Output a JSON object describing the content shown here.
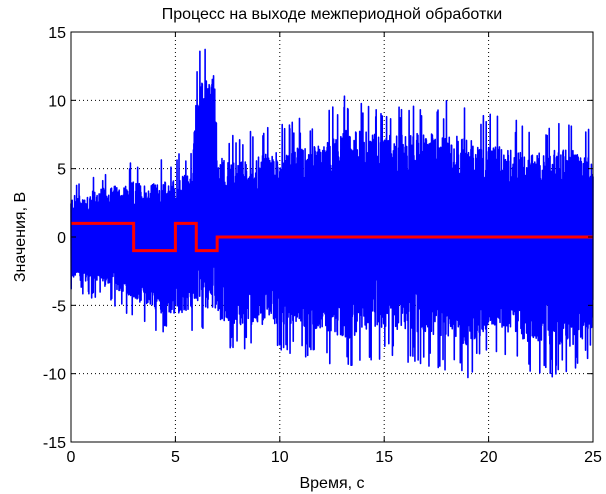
{
  "chart_data": {
    "type": "line",
    "title": "Процесс на выходе межпериодной обработки",
    "xlabel": "Время, с",
    "ylabel": "Значения, В",
    "xlim": [
      0,
      25
    ],
    "ylim": [
      -15,
      15
    ],
    "xticks": [
      0,
      5,
      10,
      15,
      20,
      25
    ],
    "yticks": [
      -15,
      -10,
      -5,
      0,
      5,
      10,
      15
    ],
    "xtick_labels": [
      "0",
      "5",
      "10",
      "15",
      "20",
      "25"
    ],
    "ytick_labels": [
      "-15",
      "-10",
      "-5",
      "0",
      "5",
      "10",
      "15"
    ],
    "grid": true,
    "grid_style": "dotted",
    "series": [
      {
        "color": "#0000ff",
        "kind": "noise-envelope",
        "x": [
          0,
          1,
          2,
          3,
          4,
          5,
          5.8,
          6.0,
          6.5,
          6.9,
          7.0,
          8,
          10,
          12,
          13.2,
          15,
          17,
          19,
          20,
          22,
          24,
          25
        ],
        "upper": [
          4,
          4.5,
          5,
          5.5,
          5.5,
          6,
          6.5,
          13.5,
          14.5,
          15,
          8,
          7.5,
          8.5,
          9,
          10.5,
          10,
          10,
          10,
          9,
          8.5,
          9,
          8
        ],
        "lower": [
          -4,
          -4.5,
          -5,
          -6,
          -7,
          -7.5,
          -7,
          -7.5,
          -8,
          -8,
          -8,
          -8.5,
          -8.5,
          -9,
          -10,
          -9,
          -9.5,
          -10.5,
          -9,
          -10,
          -10.5,
          -9
        ]
      },
      {
        "color": "#ff0000",
        "kind": "step",
        "x": [
          0,
          3,
          3,
          5,
          5,
          6,
          6,
          7,
          7,
          25
        ],
        "y": [
          1,
          1,
          -1,
          -1,
          1,
          1,
          -1,
          -1,
          0,
          0
        ]
      }
    ]
  }
}
